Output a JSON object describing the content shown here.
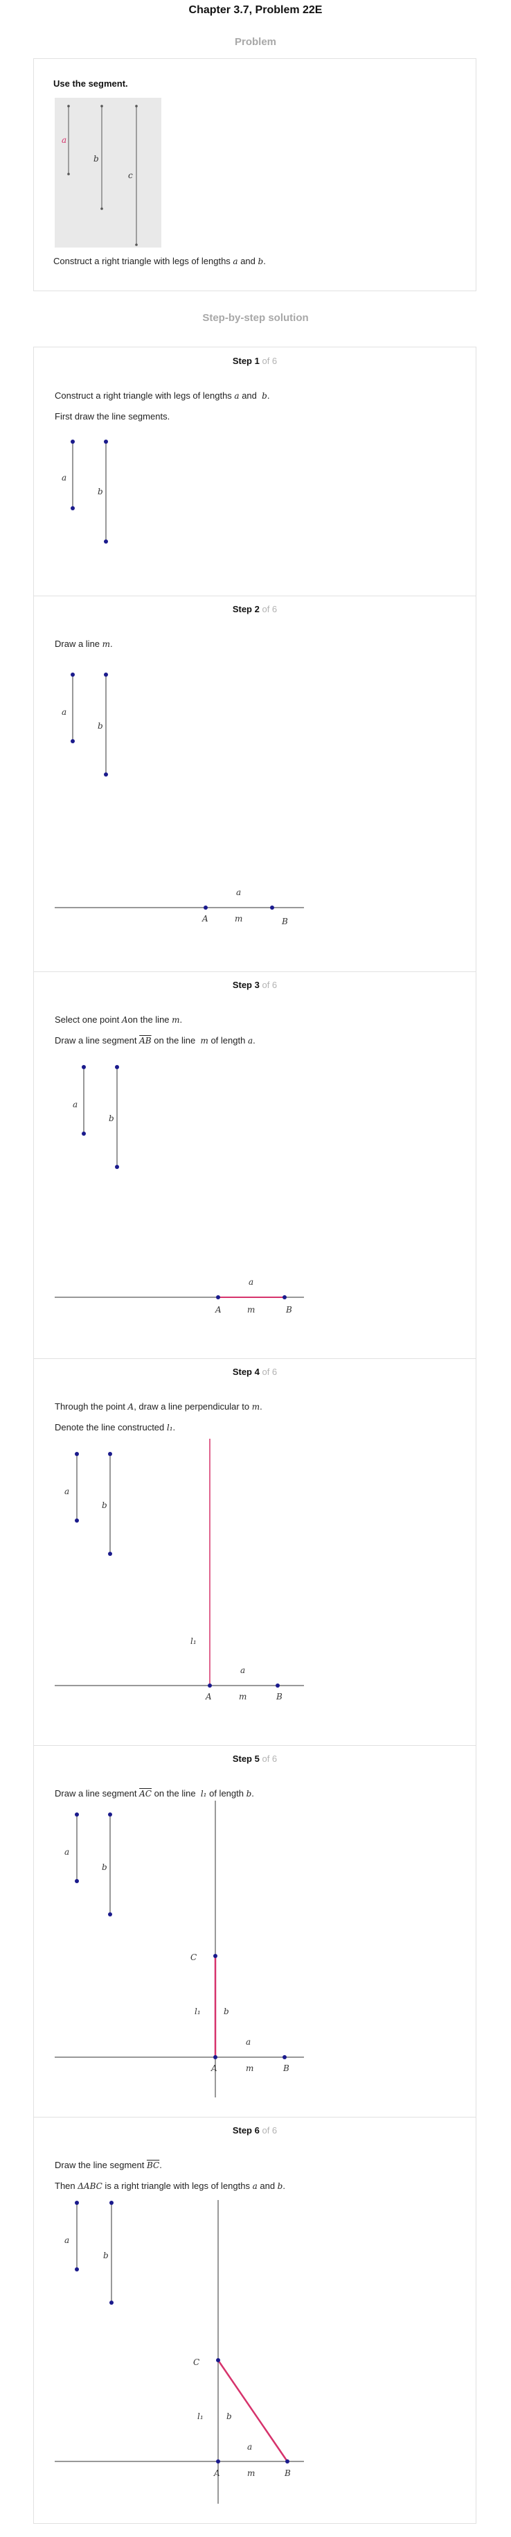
{
  "header": {
    "title": "Chapter 3.7, Problem 22E"
  },
  "problem": {
    "heading": "Problem",
    "prompt": "Use the segment.",
    "figure_labels": {
      "a": "a",
      "b": "b",
      "c": "c"
    },
    "statement_pre": "Construct a right triangle with legs of lengths ",
    "a": "a",
    "and": " and ",
    "b": "b",
    "statement_post": "."
  },
  "solution": {
    "heading": "Step-by-step solution"
  },
  "labels": {
    "a": "a",
    "b": "b",
    "A": "A",
    "B": "B",
    "C": "C",
    "m": "m",
    "l1": "l₁"
  },
  "steps": [
    {
      "label": "Step 1",
      "of": "of 6",
      "line1_pre": "Construct a right triangle with legs of lengths ",
      "line1_a": "a",
      "line1_and": "and ",
      "line1_b": "b",
      "line1_end": ".",
      "line2": "First draw the line segments."
    },
    {
      "label": "Step 2",
      "of": "of 6",
      "line1_pre": "Draw a line ",
      "line1_m": "m",
      "line1_end": "."
    },
    {
      "label": "Step 3",
      "of": "of 6",
      "line1_pre": "Select one point ",
      "line1_A": "A",
      "line1_mid": "on the line ",
      "line1_m": "m",
      "line1_end": ".",
      "line2_pre": "Draw a line segment ",
      "line2_AB": "AB",
      "line2_mid": " on the line ",
      "line2_m": "m",
      "line2_mid2": " of length ",
      "line2_a": "a",
      "line2_end": "."
    },
    {
      "label": "Step 4",
      "of": "of 6",
      "line1_pre": "Through the point ",
      "line1_A": "A",
      "line1_mid": ", draw a line perpendicular to ",
      "line1_m": "m",
      "line1_end": ".",
      "line2_pre": "Denote the line constructed ",
      "line2_l1": "l₁",
      "line2_end": "."
    },
    {
      "label": "Step 5",
      "of": "of 6",
      "line1_pre": "Draw a line segment ",
      "line1_AC": "AC",
      "line1_mid": " on the line ",
      "line1_l1": "l₁",
      "line1_mid2": " of length ",
      "line1_b": "b",
      "line1_end": "."
    },
    {
      "label": "Step 6",
      "of": "of 6",
      "line1_pre": "Draw the line segment ",
      "line1_BC": "BC",
      "line1_end": ".",
      "line2_pre": "Then ",
      "line2_tri": "ΔABC",
      "line2_mid": " is a right triangle with legs of lengths ",
      "line2_a": "a",
      "line2_and": " and ",
      "line2_b": "b",
      "line2_end": "."
    }
  ],
  "colors": {
    "point": "#1a1a8c",
    "highlight": "#d6336c",
    "line": "#333333",
    "muted": "#b3b3b3"
  }
}
